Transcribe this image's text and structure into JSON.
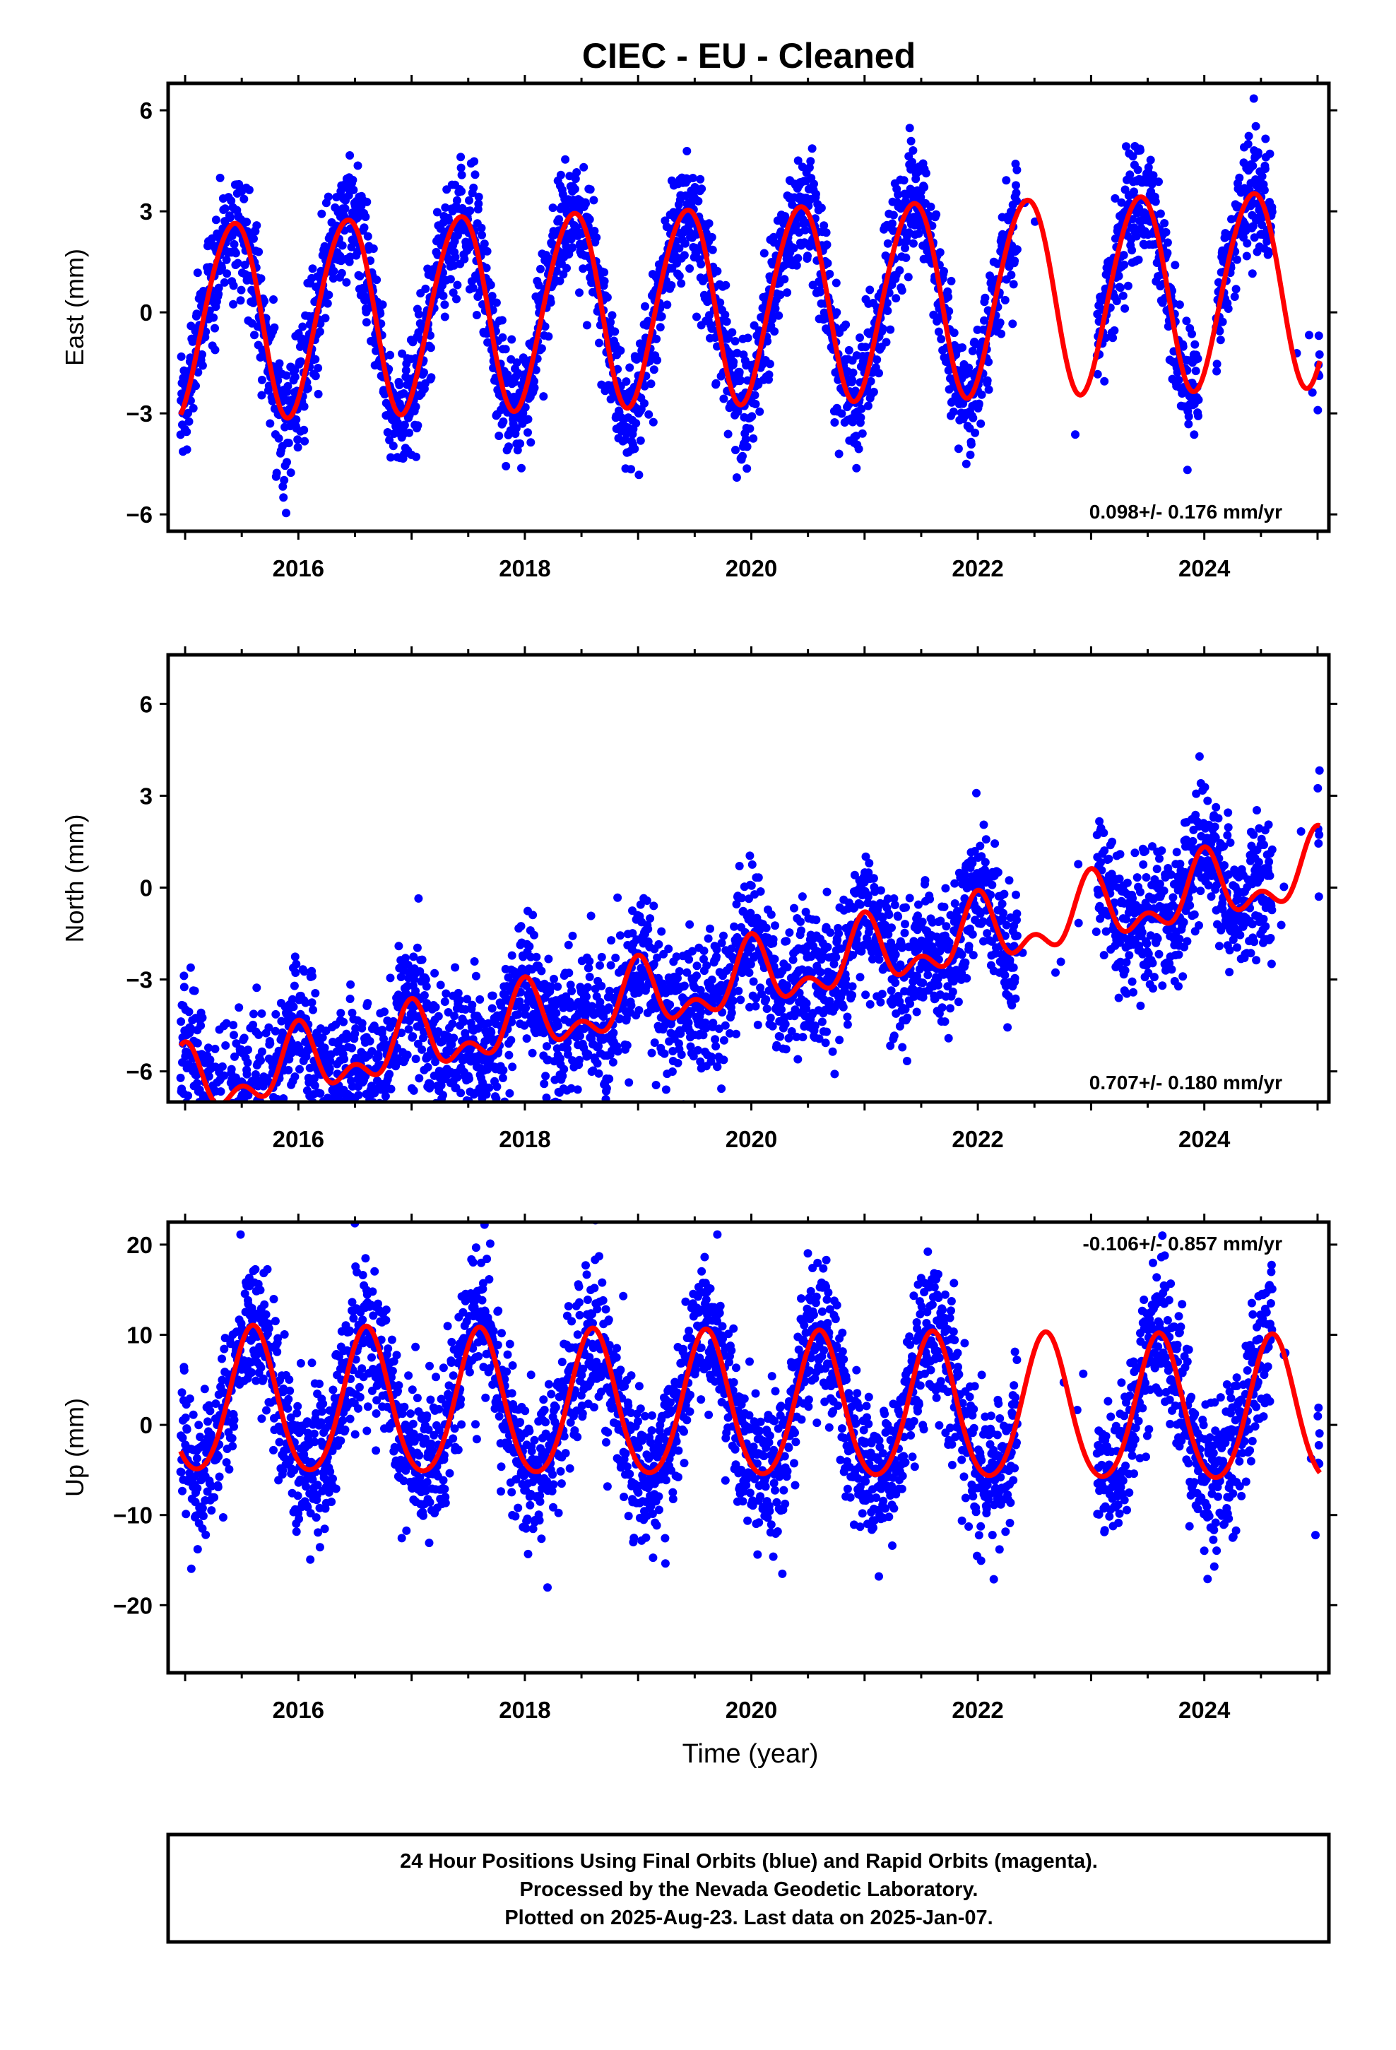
{
  "title": "CIEC  - EU - Cleaned",
  "x_axis_label": "Time (year)",
  "colors": {
    "points": "#0000ff",
    "model": "#ff0000",
    "frame": "#000000",
    "background": "#ffffff"
  },
  "chart_data": [
    {
      "type": "scatter",
      "panel": "east",
      "ylabel": "East (mm)",
      "rate_text": "0.098+/- 0.176 mm/yr",
      "rate_position": "bottom-right",
      "xlim": [
        2014.85,
        2025.1
      ],
      "ylim": [
        -6.5,
        6.8
      ],
      "xticks": [
        2016,
        2018,
        2020,
        2022,
        2024
      ],
      "xtick_labels": [
        "2016",
        "2018",
        "2020",
        "2022",
        "2024"
      ],
      "yticks": [
        -6,
        -3,
        0,
        3,
        6
      ],
      "ytick_labels": [
        "−6",
        "−3",
        "0",
        "3",
        "6"
      ],
      "grid": false,
      "model": {
        "name": "",
        "trend_mm_per_yr": 0.098,
        "mean_mm": 0.3,
        "annual_amplitude_mm": 2.9,
        "annual_peak_fraction_of_year": 0.42,
        "semiannual_amplitude_mm": 0.2,
        "semiannual_peak_fraction_of_year": 0.1,
        "data_start": 2014.96,
        "data_end": 2025.02
      },
      "gaps": [
        [
          2022.35,
          2023.05
        ],
        [
          2023.95,
          2024.1
        ],
        [
          2024.6,
          2025.0
        ]
      ],
      "scatter_sd_mm": 0.9,
      "approx_points": 3400
    },
    {
      "type": "scatter",
      "panel": "north",
      "ylabel": "North (mm)",
      "rate_text": "0.707+/- 0.180 mm/yr",
      "rate_position": "bottom-right",
      "xlim": [
        2014.85,
        2025.1
      ],
      "ylim": [
        -7.0,
        7.6
      ],
      "xticks": [
        2016,
        2018,
        2020,
        2022,
        2024
      ],
      "xtick_labels": [
        "2016",
        "2018",
        "2020",
        "2022",
        "2024"
      ],
      "yticks": [
        -6,
        -3,
        0,
        3,
        6
      ],
      "ytick_labels": [
        "−6",
        "−3",
        "0",
        "3",
        "6"
      ],
      "grid": false,
      "model": {
        "name": "",
        "trend_mm_per_yr": 0.707,
        "mean_mm": -3.0,
        "annual_amplitude_mm": 0.9,
        "annual_peak_fraction_of_year": 0.0,
        "semiannual_amplitude_mm": 0.6,
        "semiannual_peak_fraction_of_year": 0.0,
        "data_start": 2014.96,
        "data_end": 2025.02
      },
      "gaps": [
        [
          2022.35,
          2023.05
        ],
        [
          2024.6,
          2025.0
        ]
      ],
      "scatter_sd_mm": 1.1,
      "approx_points": 3400
    },
    {
      "type": "scatter",
      "panel": "up",
      "ylabel": "Up (mm)",
      "rate_text": "-0.106+/- 0.857 mm/yr",
      "rate_position": "top-right",
      "xlim": [
        2014.85,
        2025.1
      ],
      "ylim": [
        -27.5,
        22.5
      ],
      "xticks": [
        2016,
        2018,
        2020,
        2022,
        2024
      ],
      "xtick_labels": [
        "2016",
        "2018",
        "2020",
        "2022",
        "2024"
      ],
      "yticks": [
        -20,
        -10,
        0,
        10,
        20
      ],
      "ytick_labels": [
        "−20",
        "−10",
        "0",
        "10",
        "20"
      ],
      "grid": false,
      "model": {
        "name": "",
        "trend_mm_per_yr": -0.106,
        "mean_mm": 1.8,
        "annual_amplitude_mm": 8.0,
        "annual_peak_fraction_of_year": 0.6,
        "semiannual_amplitude_mm": 0.8,
        "semiannual_peak_fraction_of_year": 0.1,
        "data_start": 2014.96,
        "data_end": 2025.02
      },
      "gaps": [
        [
          2022.35,
          2023.05
        ],
        [
          2024.6,
          2025.0
        ]
      ],
      "scatter_sd_mm": 4.2,
      "approx_points": 3400
    }
  ],
  "footer": {
    "line1": "24 Hour Positions Using Final Orbits (blue) and Rapid Orbits (magenta).",
    "line2": "Processed by the Nevada Geodetic Laboratory.",
    "line3": "Plotted on 2025-Aug-23. Last data on 2025-Jan-07."
  }
}
